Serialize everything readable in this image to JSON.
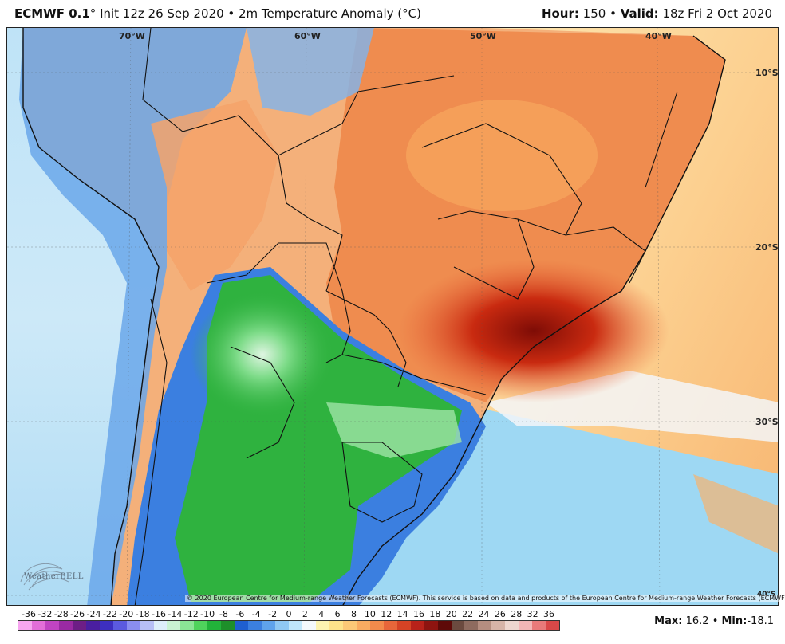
{
  "header": {
    "model": "ECMWF 0.1",
    "degree": "°",
    "subtitle": "Init 12z 26 Sep 2020 • 2m Temperature Anomaly (°C)",
    "hour_label": "Hour:",
    "hour_value": "150",
    "sep": "•",
    "valid_label": "Valid:",
    "valid_value": "18z Fri 2 Oct 2020"
  },
  "map": {
    "longitude_labels": [
      "70°W",
      "60°W",
      "50°W",
      "40°W"
    ],
    "latitude_labels": [
      "10°S",
      "20°S",
      "30°S"
    ],
    "corner_label": "40°S",
    "copyright": "© 2020 European Centre for Medium-range Weather Forecasts (ECMWF). This service is based on data and products of the European Centre for Medium-range Weather Forecasts (ECMWF).",
    "logo_text": "WeatherBELL",
    "colors": {
      "ocean_cold": "#8fd3f2",
      "ocean_warm": "#fbd99a",
      "land_warm": "#f2a060",
      "land_hot": "#c92a10",
      "land_cold_green": "#3cc04a",
      "land_cold_blue": "#3b7fe0",
      "andes_blue": "#6aa7ea"
    }
  },
  "scale": {
    "ticks": [
      "-36",
      "-32",
      "-28",
      "-26",
      "-24",
      "-22",
      "-20",
      "-18",
      "-16",
      "-14",
      "-12",
      "-10",
      "-8",
      "-6",
      "-4",
      "-2",
      "0",
      "2",
      "4",
      "6",
      "8",
      "10",
      "12",
      "14",
      "16",
      "18",
      "20",
      "22",
      "24",
      "26",
      "28",
      "32",
      "36"
    ],
    "colors": [
      "#f7a6f0",
      "#e36ed9",
      "#c044c2",
      "#9a2aa3",
      "#6d1e86",
      "#4a1fa0",
      "#3d2fc0",
      "#5b5ae0",
      "#8a8ef0",
      "#b7bff6",
      "#ddeefa",
      "#c9f3d2",
      "#8be596",
      "#4fd35c",
      "#22b33a",
      "#1e8f2a",
      "#1f5fd0",
      "#3b7fe0",
      "#5fa3ec",
      "#8fc8f3",
      "#bfe6fa",
      "#f4f9fc",
      "#fcf3b0",
      "#fde28a",
      "#fcc877",
      "#f9ab61",
      "#f38b4c",
      "#e8663a",
      "#d54325",
      "#b8221a",
      "#8e1410",
      "#5e0a08",
      "#6b4a3f",
      "#8e6b5f",
      "#b58e80",
      "#d7b4a8",
      "#eed6cf",
      "#f3b6b6",
      "#e97a7a",
      "#d94848"
    ],
    "max_label": "Max:",
    "max_value": "16.2",
    "min_label": "Min:",
    "min_value": "-18.1"
  }
}
